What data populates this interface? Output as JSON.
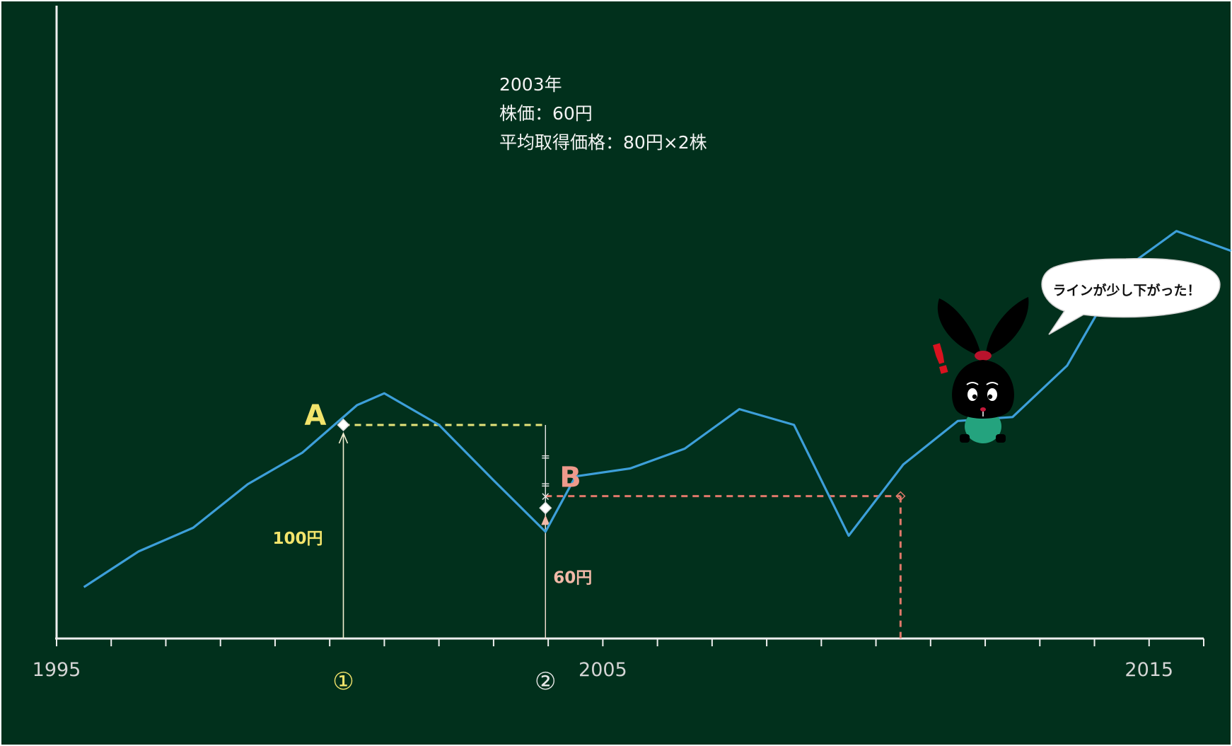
{
  "chart_data": {
    "type": "line",
    "title": "",
    "xlabel": "",
    "ylabel": "",
    "x_ticks": [
      "1995",
      "2005",
      "2015"
    ],
    "x_range": [
      1995,
      2016
    ],
    "ylim": [
      0,
      160
    ],
    "grid": false,
    "series": [
      {
        "color": "#3d9fd9",
        "x": [
          1995.5,
          1996.5,
          1997.5,
          1998.5,
          1999.5,
          2000.5,
          2001,
          2002,
          2003,
          2003.95,
          2004.5,
          2005.5,
          2006.5,
          2007.5,
          2008.5,
          2009.5,
          2010.5,
          2011.5,
          2012.5,
          2013.5,
          2014.5,
          2015.5,
          2016.5
        ],
        "values": [
          13,
          22,
          28,
          39,
          47,
          59,
          62,
          54,
          40,
          27,
          41,
          43,
          48,
          58,
          54,
          26,
          44,
          55,
          56,
          69,
          93,
          103,
          98
        ]
      }
    ],
    "points": [
      {
        "id": "A",
        "label": "A",
        "year": 2000.25,
        "value": 54,
        "color": "#f2e46b"
      },
      {
        "id": "B",
        "label": "B",
        "year": 2003.95,
        "value": 36,
        "color": "#ee9a8c"
      }
    ],
    "bottom_point": {
      "year": 2003.95,
      "value": 33
    },
    "markers": [
      {
        "label": "①",
        "year": 2000.25,
        "color": "#f2e46b"
      },
      {
        "label": "②",
        "year": 2003.95,
        "color": "#e8e8e8"
      }
    ],
    "annotations": {
      "price_a": "100円",
      "price_b": "60円",
      "info_lines": [
        "2003年",
        "株価：60円",
        "平均取得価格：80円×2株"
      ],
      "eq_sign": "=",
      "times_sign": "×"
    }
  },
  "speech_bubble": {
    "text": "ラインが少し下がった！"
  },
  "mascot": {
    "exclaim": "!"
  },
  "colors": {
    "background": "#01301c",
    "axis": "#efefef",
    "line": "#3d9fd9",
    "a_dash": "#e6e47a",
    "b_dash": "#e0786a",
    "tick_label": "#d4d4d4"
  }
}
